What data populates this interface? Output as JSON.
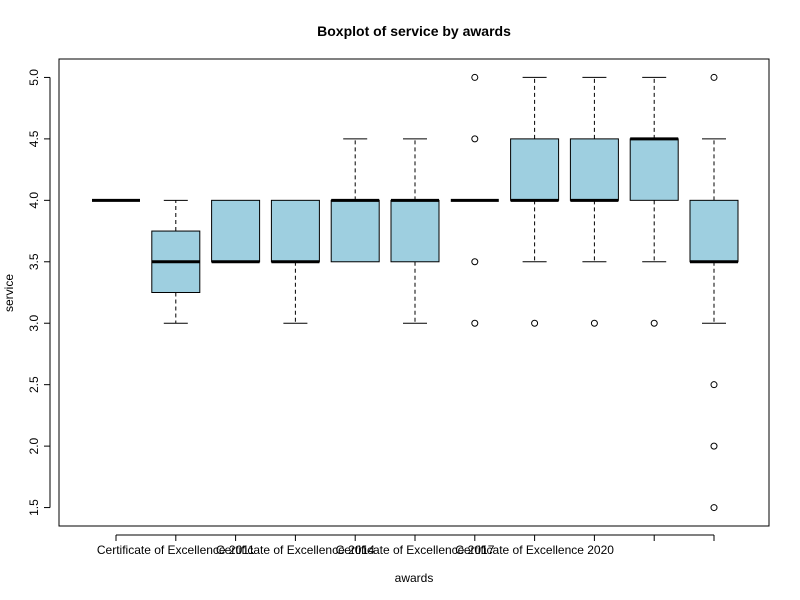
{
  "chart_data": {
    "type": "boxplot",
    "title": "Boxplot of service by awards",
    "xlabel": "awards",
    "ylabel": "service",
    "ylim": [
      1.35,
      5.15
    ],
    "yticks": [
      "1.5",
      "2.0",
      "2.5",
      "3.0",
      "3.5",
      "4.0",
      "4.5",
      "5.0"
    ],
    "box_color": "#9ecfe0",
    "x_tick_labels": [
      {
        "index": 1,
        "label": "Certificate of Excellence 2011"
      },
      {
        "index": 3,
        "label": "Certificate of Excellence 2014"
      },
      {
        "index": 5,
        "label": "Certificate of Excellence 2017"
      },
      {
        "index": 7,
        "label": "Certificate of Excellence 2020"
      }
    ],
    "boxes": [
      {
        "min": 4.0,
        "q1": 4.0,
        "median": 4.0,
        "q3": 4.0,
        "max": 4.0,
        "outliers": []
      },
      {
        "min": 3.0,
        "q1": 3.25,
        "median": 3.5,
        "q3": 3.75,
        "max": 4.0,
        "outliers": []
      },
      {
        "min": 3.5,
        "q1": 3.5,
        "median": 3.5,
        "q3": 4.0,
        "max": 4.0,
        "outliers": []
      },
      {
        "min": 3.0,
        "q1": 3.5,
        "median": 3.5,
        "q3": 4.0,
        "max": 4.0,
        "outliers": []
      },
      {
        "min": 3.5,
        "q1": 3.5,
        "median": 4.0,
        "q3": 4.0,
        "max": 4.5,
        "outliers": []
      },
      {
        "min": 3.0,
        "q1": 3.5,
        "median": 4.0,
        "q3": 4.0,
        "max": 4.5,
        "outliers": []
      },
      {
        "min": 4.0,
        "q1": 4.0,
        "median": 4.0,
        "q3": 4.0,
        "max": 4.0,
        "outliers": [
          5.0,
          4.5,
          3.5,
          3.0
        ]
      },
      {
        "min": 3.5,
        "q1": 4.0,
        "median": 4.0,
        "q3": 4.5,
        "max": 5.0,
        "outliers": [
          3.0
        ]
      },
      {
        "min": 3.5,
        "q1": 4.0,
        "median": 4.0,
        "q3": 4.5,
        "max": 5.0,
        "outliers": [
          3.0
        ]
      },
      {
        "min": 3.5,
        "q1": 4.0,
        "median": 4.5,
        "q3": 4.5,
        "max": 5.0,
        "outliers": [
          3.0
        ]
      },
      {
        "min": 3.0,
        "q1": 3.5,
        "median": 3.5,
        "q3": 4.0,
        "max": 4.5,
        "outliers": [
          5.0,
          2.5,
          2.0,
          1.5
        ]
      }
    ]
  }
}
